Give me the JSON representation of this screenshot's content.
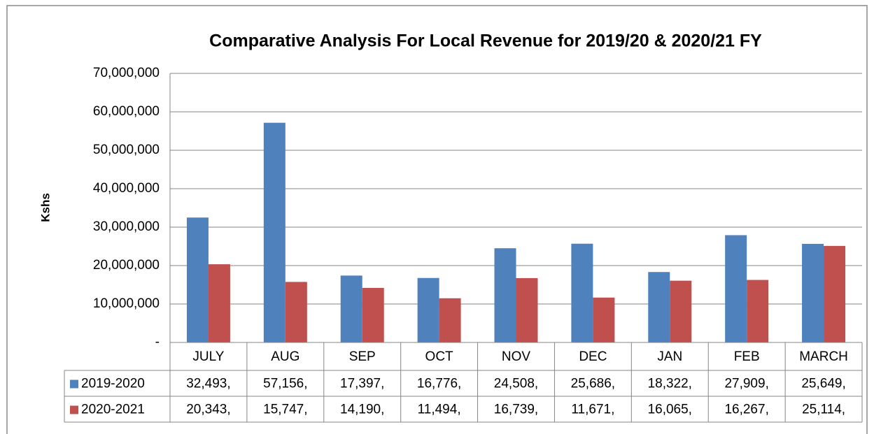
{
  "chart_data": {
    "type": "bar",
    "title": "Comparative Analysis For Local Revenue  for 2019/20 & 2020/21 FY",
    "y_label": "Kshs",
    "categories": [
      "JULY",
      "AUG",
      "SEP",
      "OCT",
      "NOV",
      "DEC",
      "JAN",
      "FEB",
      "MARCH"
    ],
    "series": [
      {
        "name": "2019-2020",
        "color": "#4f81bd",
        "values": [
          32493000,
          57156000,
          17397000,
          16776000,
          24508000,
          25686000,
          18322000,
          27909000,
          25649000
        ],
        "value_labels": [
          "32,493,",
          "57,156,",
          "17,397,",
          "16,776,",
          "24,508,",
          "25,686,",
          "18,322,",
          "27,909,",
          "25,649,"
        ]
      },
      {
        "name": "2020-2021",
        "color": "#c0504d",
        "values": [
          20343000,
          15747000,
          14190000,
          11494000,
          16739000,
          11671000,
          16065000,
          16267000,
          25114000
        ],
        "value_labels": [
          "20,343,",
          "15,747,",
          "14,190,",
          "11,494,",
          "16,739,",
          "11,671,",
          "16,065,",
          "16,267,",
          "25,114,"
        ]
      }
    ],
    "ylim": [
      0,
      70000000
    ],
    "yticks": [
      {
        "value": 0,
        "label": "-"
      },
      {
        "value": 10000000,
        "label": "10,000,000"
      },
      {
        "value": 20000000,
        "label": "20,000,000"
      },
      {
        "value": 30000000,
        "label": "30,000,000"
      },
      {
        "value": 40000000,
        "label": "40,000,000"
      },
      {
        "value": 50000000,
        "label": "50,000,000"
      },
      {
        "value": 60000000,
        "label": "60,000,000"
      },
      {
        "value": 70000000,
        "label": "70,000,000"
      }
    ],
    "grid": true,
    "legend": "data-table"
  }
}
